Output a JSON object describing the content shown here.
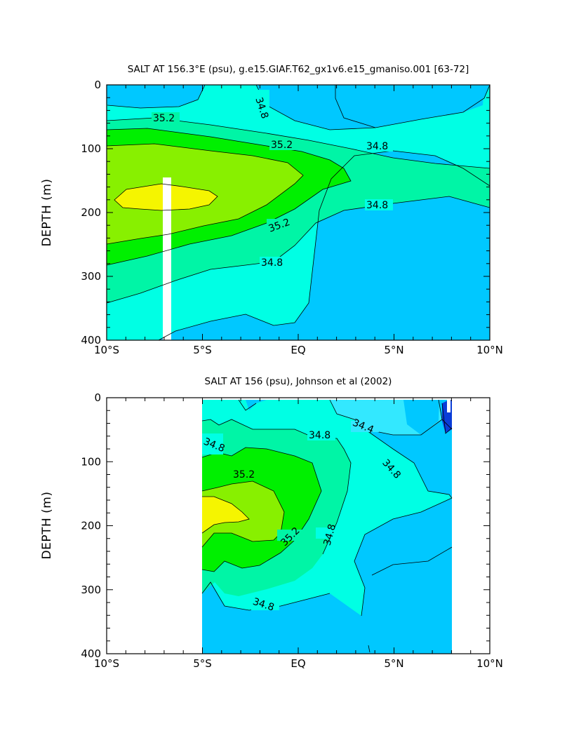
{
  "colors": {
    "lvl_346": "#00c8ff",
    "lvl_344": "#33e8ff",
    "lvl_346_dark": "#0a3dd8",
    "lvl_348": "#00ffe4",
    "lvl_350": "#00f5a6",
    "lvl_352": "#00f000",
    "lvl_354": "#88f000",
    "lvl_356": "#f5f500",
    "line": "#000000",
    "mask": "#ffffff"
  },
  "chart_data": [
    {
      "type": "contour",
      "title": "SALT AT 156.3°E (psu), g.e15.GIAF.T62_gx1v6.e15_gmaniso.001 [63-72]",
      "ylabel": "DEPTH (m)",
      "xlim": [
        -10,
        10
      ],
      "ylim": [
        400,
        0
      ],
      "x_tick_labels": [
        "10°S",
        "5°S",
        "EQ",
        "5°N",
        "10°N"
      ],
      "x_ticks": [
        -10,
        -5,
        0,
        5,
        10
      ],
      "y_tick_labels": [
        "0",
        "100",
        "200",
        "300",
        "400"
      ],
      "y_ticks": [
        0,
        100,
        200,
        300,
        400
      ],
      "contour_labels": [
        "34.8",
        "35.2",
        "35.2",
        "34.8",
        "35.2",
        "34.8",
        "34.8"
      ]
    },
    {
      "type": "contour",
      "title": "SALT AT 156 (psu), Johnson et al (2002)",
      "ylabel": "DEPTH (m)",
      "xlim": [
        -10,
        10
      ],
      "ylim": [
        400,
        0
      ],
      "x_tick_labels": [
        "10°S",
        "5°S",
        "EQ",
        "5°N",
        "10°N"
      ],
      "x_ticks": [
        -10,
        -5,
        0,
        5,
        10
      ],
      "y_tick_labels": [
        "0",
        "100",
        "200",
        "300",
        "400"
      ],
      "y_ticks": [
        0,
        100,
        200,
        300,
        400
      ],
      "data_extent": {
        "x": [
          -5,
          8
        ],
        "depth": [
          10,
          400
        ]
      },
      "contour_labels": [
        "34.8",
        "34.8",
        "34.4",
        "35.2",
        "34.8",
        "35.2",
        "34.8",
        "34.8"
      ]
    }
  ]
}
